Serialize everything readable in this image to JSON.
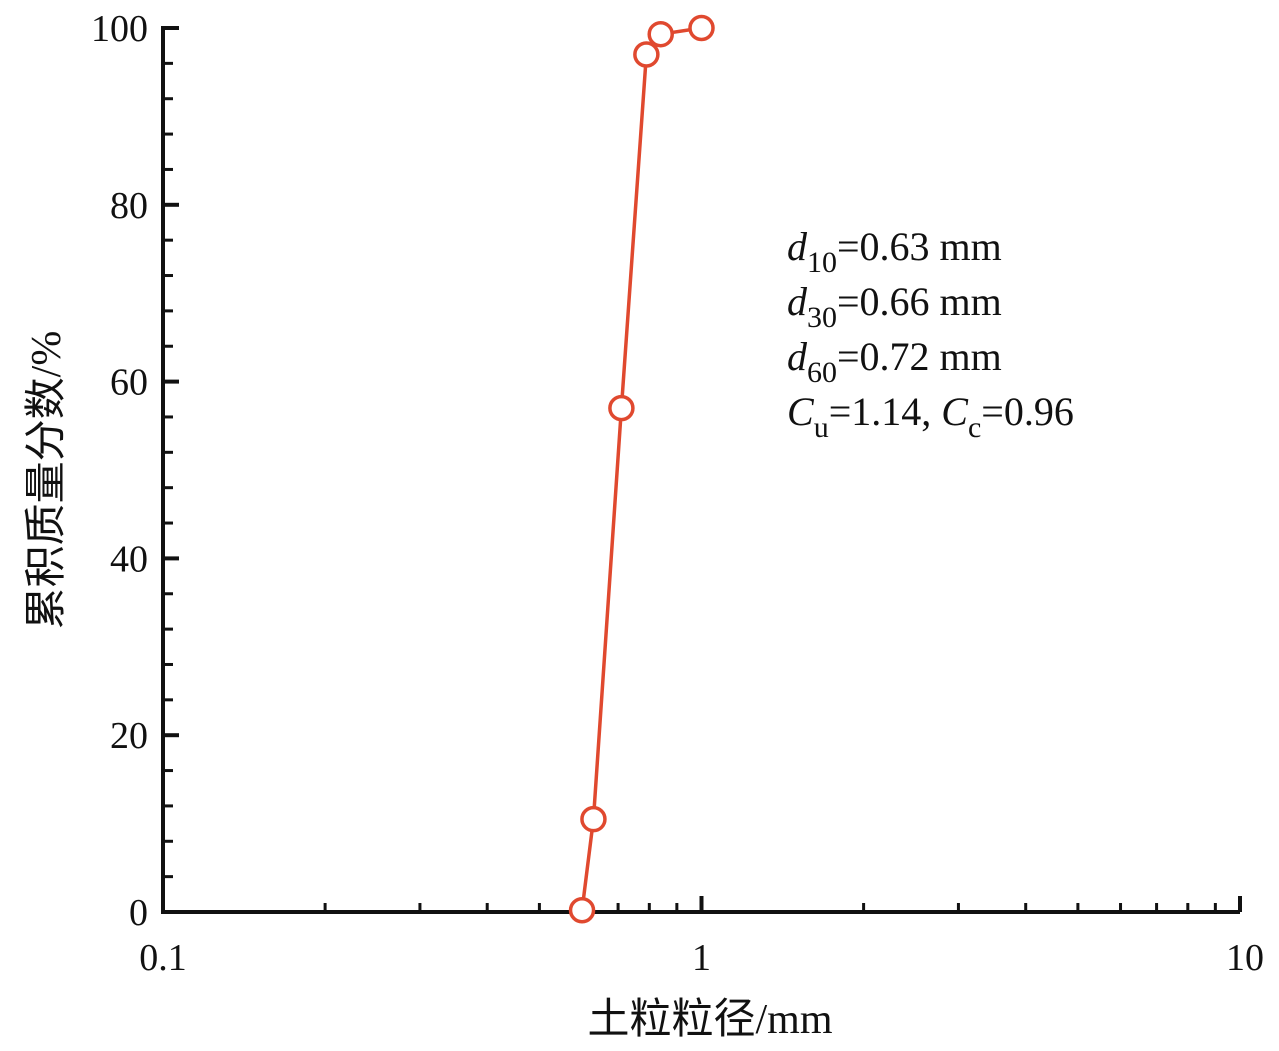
{
  "chart_data": {
    "type": "scatter",
    "title": "",
    "xlabel": "土粒粒径/mm",
    "ylabel": "累积质量分数/%",
    "x_scale": "log",
    "xlim": [
      0.1,
      10
    ],
    "ylim": [
      0,
      100
    ],
    "x_ticks": [
      0.1,
      1,
      10
    ],
    "x_tick_labels": [
      "0.1",
      "1",
      "10"
    ],
    "y_ticks": [
      0,
      20,
      40,
      60,
      80,
      100
    ],
    "y_tick_labels": [
      "0",
      "20",
      "40",
      "60",
      "80",
      "100"
    ],
    "grid": false,
    "legend": "none",
    "series": [
      {
        "x": [
          0.6,
          0.63,
          0.71,
          0.79,
          0.84,
          1.0
        ],
        "y": [
          0.2,
          10.5,
          57,
          97,
          99.3,
          100
        ],
        "color": "#e0492f",
        "marker": "open-circle",
        "line": true
      }
    ],
    "annotations": [
      {
        "var": "d",
        "sub": "10",
        "rest": "=0.63 mm"
      },
      {
        "var": "d",
        "sub": "30",
        "rest": "=0.66 mm"
      },
      {
        "var": "d",
        "sub": "60",
        "rest": "=0.72 mm"
      }
    ],
    "coef": {
      "cu_var": "C",
      "cu_sub": "u",
      "cu_val": "=1.14, ",
      "cc_var": "C",
      "cc_sub": "c",
      "cc_val": "=0.96"
    }
  }
}
